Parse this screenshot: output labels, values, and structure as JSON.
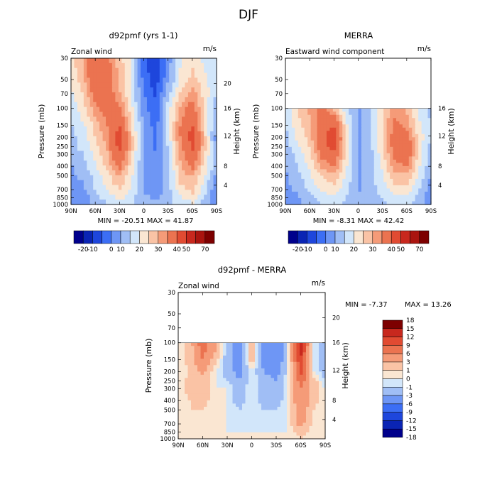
{
  "figure": {
    "title": "DJF"
  },
  "colors": {
    "cb1": [
      "#00008c",
      "#0a24b4",
      "#1e46dc",
      "#3c6ef5",
      "#6e96f5",
      "#a0bef5",
      "#d2e6fa",
      "#fae6d2",
      "#fac3a5",
      "#f59b78",
      "#eb7350",
      "#e14b32",
      "#c8281e",
      "#aa140f",
      "#7d0000"
    ],
    "cb3": [
      "#00008c",
      "#0a24b4",
      "#1e46dc",
      "#3c6ef5",
      "#6e96f5",
      "#a0bef5",
      "#d2e6fa",
      "#fae6d2",
      "#fac3a5",
      "#f59b78",
      "#eb7350",
      "#e14b32",
      "#c8281e",
      "#7d0000"
    ]
  },
  "chart_data": [
    {
      "id": "p1",
      "type": "heatmap",
      "title": "d92pmf (yrs 1-1)",
      "left_label": "Zonal wind",
      "units": "m/s",
      "ylabel": "Pressure (mb)",
      "y2label": "Height (km)",
      "x_ticks": [
        "90N",
        "60N",
        "30N",
        "0",
        "30S",
        "60S",
        "90S"
      ],
      "y_ticks": [
        "30",
        "50",
        "70",
        "100",
        "150",
        "200",
        "250",
        "300",
        "400",
        "500",
        "700",
        "850",
        "1000"
      ],
      "y2_ticks": [
        "20",
        "16",
        "12",
        "8",
        "4"
      ],
      "stats": "MIN = -20.51   MAX = 41.87",
      "colorbar_labels": [
        "-20",
        "-10",
        "0",
        "10",
        "20",
        "30",
        "40",
        "50",
        "70"
      ],
      "data_top_pressure": 30,
      "approx_field": {
        "x": [
          90,
          75,
          60,
          45,
          30,
          15,
          0,
          -15,
          -30,
          -45,
          -60,
          -75,
          -90
        ],
        "p": [
          30,
          50,
          70,
          100,
          150,
          200,
          250,
          300,
          400,
          500,
          700,
          850,
          1000
        ],
        "u": [
          [
            8,
            15,
            28,
            22,
            12,
            4,
            -14,
            -20,
            -8,
            4,
            8,
            4,
            2
          ],
          [
            6,
            14,
            28,
            24,
            14,
            4,
            -12,
            -18,
            -6,
            6,
            12,
            6,
            2
          ],
          [
            4,
            10,
            24,
            24,
            16,
            4,
            -10,
            -16,
            -2,
            10,
            18,
            8,
            0
          ],
          [
            2,
            8,
            18,
            24,
            22,
            6,
            -8,
            -14,
            2,
            16,
            24,
            8,
            -4
          ],
          [
            0,
            4,
            12,
            20,
            30,
            10,
            -6,
            -12,
            2,
            20,
            30,
            10,
            -6
          ],
          [
            -2,
            2,
            10,
            18,
            36,
            12,
            -6,
            -12,
            2,
            20,
            34,
            12,
            -8
          ],
          [
            -2,
            2,
            8,
            16,
            34,
            12,
            -6,
            -12,
            0,
            18,
            32,
            12,
            -6
          ],
          [
            -4,
            0,
            6,
            14,
            30,
            10,
            -6,
            -10,
            0,
            16,
            28,
            10,
            -4
          ],
          [
            -6,
            -2,
            4,
            12,
            22,
            8,
            -6,
            -10,
            -2,
            14,
            22,
            8,
            -2
          ],
          [
            -6,
            -4,
            2,
            8,
            16,
            6,
            -6,
            -8,
            -2,
            12,
            16,
            6,
            -6
          ],
          [
            -8,
            -6,
            0,
            6,
            10,
            4,
            -6,
            -8,
            -2,
            8,
            12,
            2,
            -10
          ],
          [
            -8,
            -8,
            -2,
            2,
            6,
            2,
            -4,
            -6,
            -2,
            4,
            8,
            0,
            -10
          ],
          [
            -6,
            -6,
            -4,
            0,
            4,
            0,
            -4,
            -4,
            -2,
            2,
            4,
            -2,
            -8
          ]
        ]
      }
    },
    {
      "id": "p2",
      "type": "heatmap",
      "title": "MERRA",
      "left_label": "Eastward wind component",
      "units": "m/s",
      "ylabel": "Pressure (mb)",
      "y2label": "Height (km)",
      "x_ticks": [
        "90N",
        "60N",
        "30N",
        "0",
        "30S",
        "60S",
        "90S"
      ],
      "y_ticks": [
        "30",
        "50",
        "70",
        "100",
        "150",
        "200",
        "250",
        "300",
        "400",
        "500",
        "700",
        "850",
        "1000"
      ],
      "y2_ticks": [
        "16",
        "12",
        "8",
        "4"
      ],
      "stats": "MIN = -8.31   MAX = 42.42",
      "colorbar_labels": [
        "-20",
        "-10",
        "0",
        "10",
        "20",
        "30",
        "40",
        "50",
        "70"
      ],
      "data_top_pressure": 100,
      "approx_field": {
        "x": [
          90,
          75,
          60,
          45,
          30,
          15,
          0,
          -15,
          -30,
          -45,
          -60,
          -75,
          -90
        ],
        "p": [
          100,
          150,
          200,
          250,
          300,
          400,
          500,
          700,
          850,
          1000
        ],
        "u": [
          [
            2,
            10,
            16,
            22,
            14,
            2,
            -6,
            -2,
            10,
            18,
            14,
            4,
            -2
          ],
          [
            0,
            8,
            14,
            26,
            30,
            6,
            -6,
            -2,
            10,
            22,
            18,
            6,
            0
          ],
          [
            -2,
            6,
            12,
            28,
            36,
            8,
            -6,
            -2,
            10,
            24,
            24,
            8,
            0
          ],
          [
            -2,
            4,
            10,
            26,
            34,
            8,
            -6,
            -2,
            10,
            24,
            30,
            8,
            -2
          ],
          [
            -4,
            2,
            8,
            22,
            28,
            8,
            -6,
            -2,
            8,
            22,
            26,
            8,
            -2
          ],
          [
            -4,
            0,
            6,
            16,
            20,
            6,
            -6,
            -2,
            6,
            18,
            20,
            6,
            -4
          ],
          [
            -6,
            -2,
            4,
            10,
            14,
            4,
            -6,
            -2,
            4,
            14,
            14,
            4,
            -6
          ],
          [
            -6,
            -4,
            2,
            6,
            8,
            2,
            -6,
            -2,
            2,
            8,
            8,
            0,
            -8
          ],
          [
            -8,
            -6,
            -2,
            2,
            4,
            0,
            -4,
            -2,
            0,
            4,
            4,
            -2,
            -8
          ],
          [
            -6,
            -6,
            -4,
            0,
            2,
            -2,
            -4,
            -2,
            -2,
            2,
            2,
            -4,
            -6
          ]
        ]
      }
    },
    {
      "id": "p3",
      "type": "heatmap",
      "title": "d92pmf - MERRA",
      "left_label": "Zonal wind",
      "units": "m/s",
      "ylabel": "Pressure (mb)",
      "y2label": "Height (km)",
      "x_ticks": [
        "90N",
        "60N",
        "30N",
        "0",
        "30S",
        "60S",
        "90S"
      ],
      "y_ticks": [
        "30",
        "50",
        "70",
        "100",
        "150",
        "200",
        "250",
        "300",
        "400",
        "500",
        "700",
        "850",
        "1000"
      ],
      "y2_ticks": [
        "20",
        "16",
        "12",
        "8",
        "4"
      ],
      "stats_min": "MIN =   -7.37",
      "stats_max": "MAX =   13.26",
      "colorbar_labels": [
        "18",
        "15",
        "12",
        "9",
        "6",
        "3",
        "1",
        "0",
        "-1",
        "-3",
        "-6",
        "-9",
        "-12",
        "-15",
        "-18"
      ],
      "data_top_pressure": 100,
      "approx_field": {
        "x": [
          90,
          75,
          60,
          45,
          30,
          15,
          0,
          -15,
          -30,
          -45,
          -60,
          -75,
          -90
        ],
        "p": [
          100,
          150,
          200,
          250,
          300,
          400,
          500,
          700,
          850,
          1000
        ],
        "u": [
          [
            0,
            2,
            8,
            4,
            -2,
            -4,
            2,
            -4,
            -6,
            0,
            14,
            0,
            -2
          ],
          [
            0,
            2,
            6,
            2,
            -2,
            -4,
            2,
            -4,
            -6,
            0,
            12,
            0,
            -2
          ],
          [
            0,
            1,
            4,
            0,
            -2,
            -4,
            0,
            -3,
            -4,
            0,
            10,
            0,
            -2
          ],
          [
            0,
            2,
            2,
            0,
            -1,
            -3,
            0,
            -2,
            -3,
            0,
            8,
            2,
            -1
          ],
          [
            0,
            2,
            2,
            0,
            0,
            -2,
            0,
            -2,
            -2,
            0,
            6,
            2,
            0
          ],
          [
            0,
            1,
            2,
            0,
            0,
            -2,
            0,
            -2,
            -2,
            0,
            6,
            2,
            0
          ],
          [
            0,
            1,
            1,
            0,
            0,
            -1,
            0,
            -1,
            -1,
            0,
            5,
            1,
            0
          ],
          [
            0,
            0,
            1,
            0,
            0,
            -1,
            0,
            -1,
            -1,
            0,
            4,
            1,
            0
          ],
          [
            0,
            0,
            0,
            0,
            0,
            0,
            0,
            0,
            0,
            0,
            2,
            0,
            0
          ],
          [
            0,
            0,
            0,
            0,
            0,
            0,
            0,
            0,
            0,
            0,
            1,
            0,
            0
          ]
        ]
      }
    }
  ]
}
